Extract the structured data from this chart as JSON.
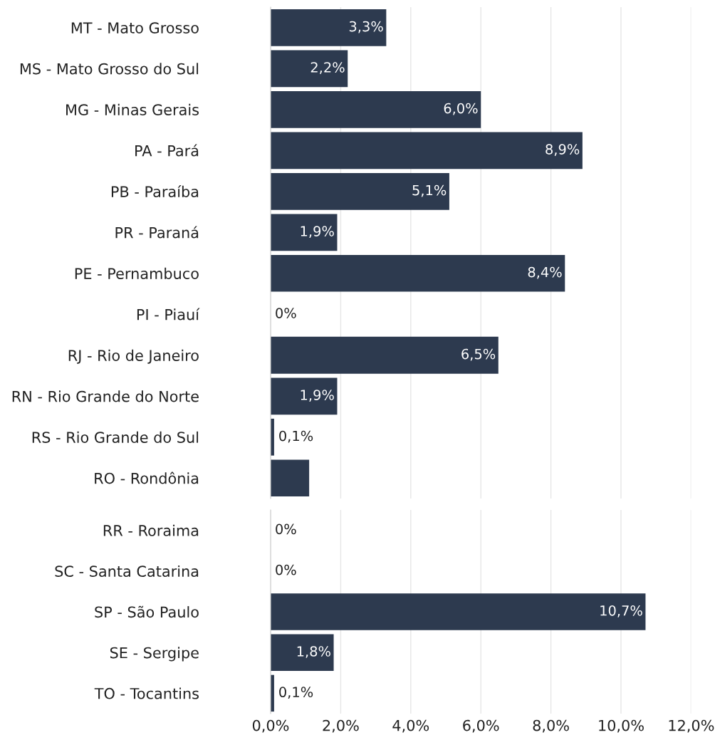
{
  "chart_data": [
    {
      "type": "bar",
      "orientation": "horizontal",
      "categories": [
        "MT - Mato Grosso",
        "MS - Mato Grosso do Sul",
        "MG - Minas Gerais",
        "PA - Pará",
        "PB - Paraíba",
        "PR - Paraná",
        "PE - Pernambuco",
        "PI - Piauí",
        "RJ - Rio de Janeiro",
        "RN - Rio Grande do Norte",
        "RS - Rio Grande do Sul",
        "RO - Rondônia"
      ],
      "values": [
        3.3,
        2.2,
        6.0,
        8.9,
        5.1,
        1.9,
        8.4,
        0,
        6.5,
        1.9,
        0.1,
        1.1
      ],
      "value_labels": [
        "3,3%",
        "2,2%",
        "6,0%",
        "8,9%",
        "5,1%",
        "1,9%",
        "8,4%",
        "0%",
        "6,5%",
        "1,9%",
        "0,1%",
        null
      ],
      "color": "#2d3a4f",
      "xlim": [
        0,
        12
      ],
      "xticks": [
        {
          "value": 0,
          "label": null
        },
        {
          "value": 2,
          "label": null
        },
        {
          "value": 4,
          "label": null
        },
        {
          "value": 6,
          "label": null
        },
        {
          "value": 8,
          "label": null
        },
        {
          "value": 10,
          "label": null
        },
        {
          "value": 12,
          "label": null
        }
      ],
      "tick_labels": "y",
      "grid": "x",
      "legend": false
    },
    {
      "type": "bar",
      "orientation": "horizontal",
      "categories": [
        "RR - Roraima",
        "SC - Santa Catarina",
        "SP - São Paulo",
        "SE - Sergipe",
        "TO - Tocantins"
      ],
      "values": [
        0,
        0,
        10.7,
        1.8,
        0.1
      ],
      "value_labels": [
        "0%",
        "0%",
        "10,7%",
        "1,8%",
        "0,1%"
      ],
      "color": "#2d3a4f",
      "xlim": [
        0,
        12
      ],
      "xticks": [
        {
          "value": 0,
          "label": "0,0%"
        },
        {
          "value": 2,
          "label": "2,0%"
        },
        {
          "value": 4,
          "label": "4,0%"
        },
        {
          "value": 6,
          "label": "6,0%"
        },
        {
          "value": 8,
          "label": "8,0%"
        },
        {
          "value": 10,
          "label": "10,0%"
        },
        {
          "value": 12,
          "label": "12,0%"
        }
      ],
      "grid": "x",
      "legend": false
    }
  ]
}
